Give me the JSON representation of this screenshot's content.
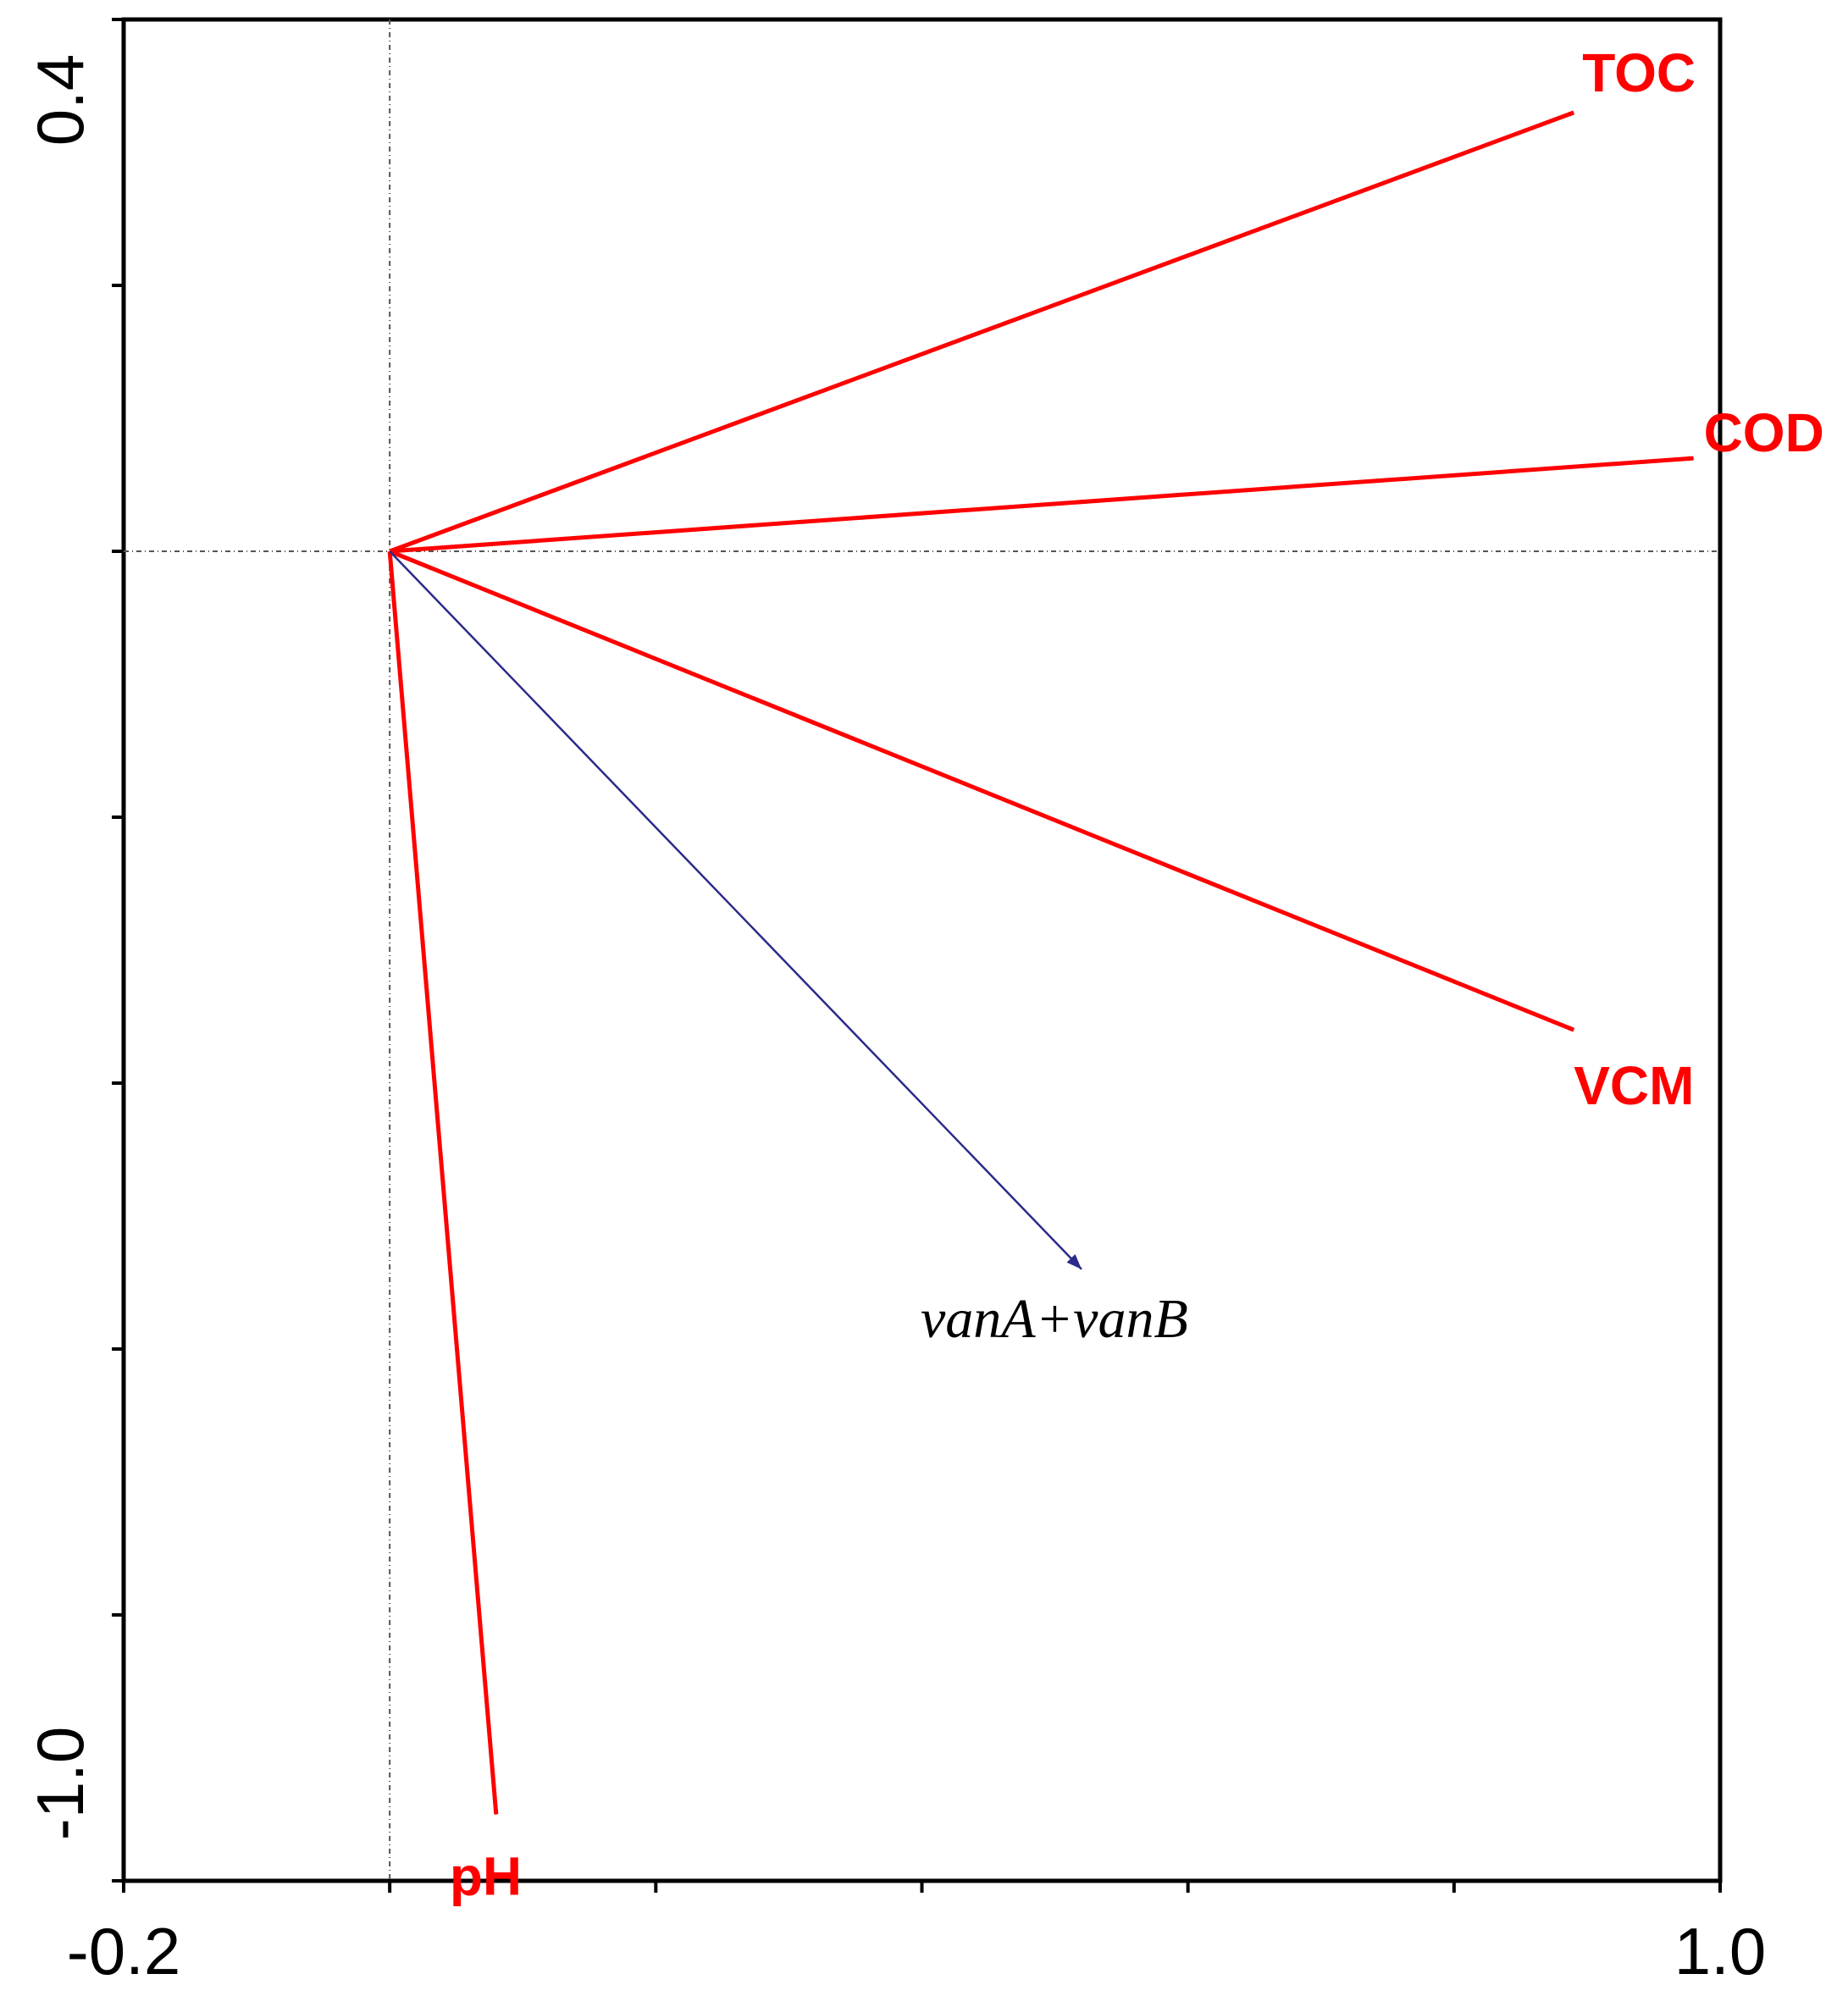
{
  "chart_data": {
    "type": "scatter",
    "subtype": "biplot",
    "title": "",
    "xlabel": "",
    "ylabel": "",
    "xlim": [
      -0.2,
      1.0
    ],
    "ylim": [
      -1.0,
      0.4
    ],
    "x_tick_labels": [
      "-0.2",
      "1.0"
    ],
    "y_tick_labels": [
      "0.4",
      "-1.0"
    ],
    "reference_lines": {
      "x": 0,
      "y": 0,
      "style": "dash-dot"
    },
    "grid": false,
    "series": [
      {
        "name": "TOC",
        "kind": "environmental",
        "color": "#ff0000",
        "x": 0.89,
        "y": 0.33
      },
      {
        "name": "COD",
        "kind": "environmental",
        "color": "#ff0000",
        "x": 0.98,
        "y": 0.07
      },
      {
        "name": "VCM",
        "kind": "environmental",
        "color": "#ff0000",
        "x": 0.89,
        "y": -0.36
      },
      {
        "name": "pH",
        "kind": "environmental",
        "color": "#ff0000",
        "x": 0.08,
        "y": -0.95
      },
      {
        "name": "vanA+vanB",
        "kind": "species",
        "color": "#2b2b8a",
        "x": 0.52,
        "y": -0.54
      }
    ]
  }
}
